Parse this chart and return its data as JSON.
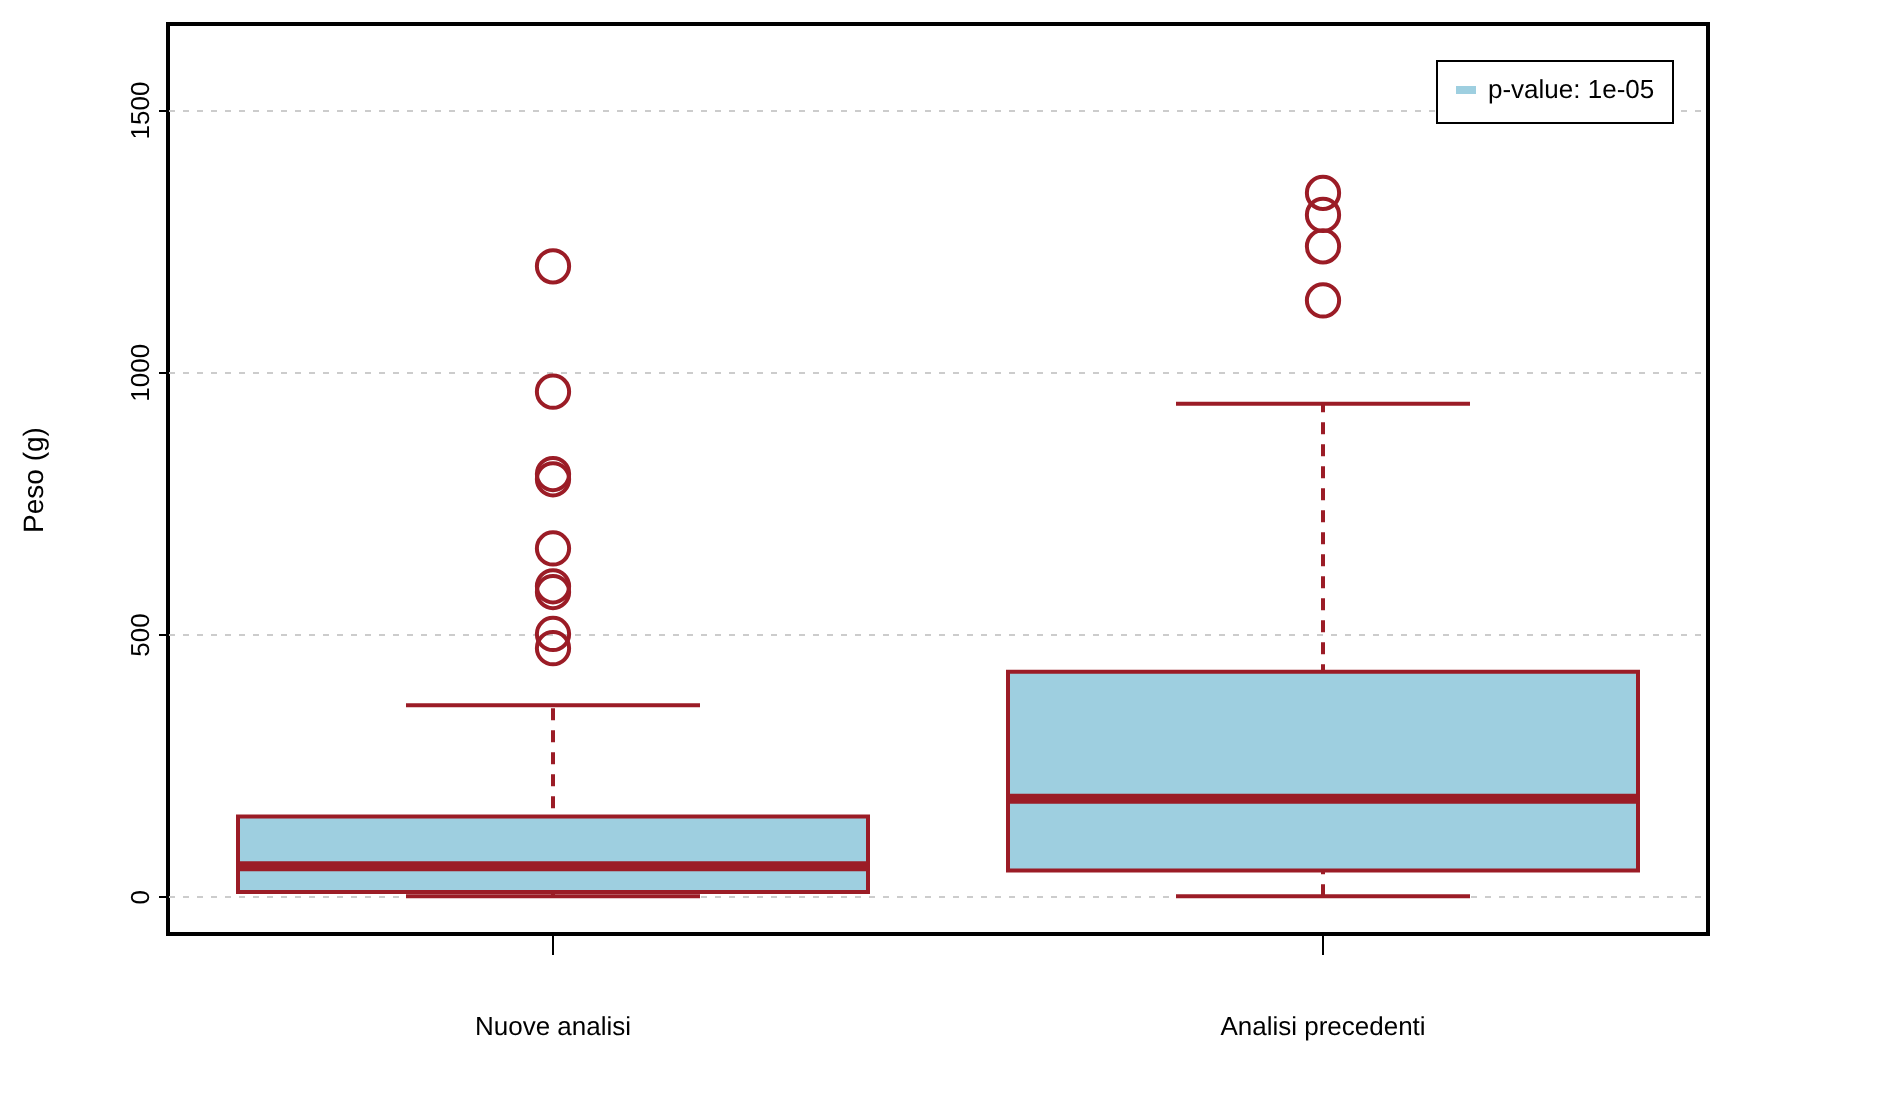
{
  "chart_data": {
    "type": "box",
    "ylabel": "Peso (g)",
    "categories": [
      "Nuove analisi",
      "Analisi precedenti"
    ],
    "series": [
      {
        "name": "p-value: 1e-05",
        "color": "#9ecfe0",
        "boxes": [
          {
            "low": 0,
            "q1": 8,
            "median": 57,
            "q3": 152,
            "high": 364,
            "outliers": [
              1201,
              962,
              805,
              795,
              663,
              591,
              580,
              500,
              473
            ]
          },
          {
            "low": 0,
            "q1": 49,
            "median": 186,
            "q3": 428,
            "high": 939,
            "outliers": [
              1341,
              1299,
              1239,
              1136
            ]
          }
        ]
      }
    ],
    "ylim": [
      -72,
      1663
    ],
    "yticks": [
      0,
      500,
      1000,
      1500
    ],
    "grid": "y",
    "legend": "top right"
  }
}
